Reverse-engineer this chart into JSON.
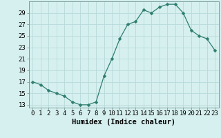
{
  "x": [
    0,
    1,
    2,
    3,
    4,
    5,
    6,
    7,
    8,
    9,
    10,
    11,
    12,
    13,
    14,
    15,
    16,
    17,
    18,
    19,
    20,
    21,
    22,
    23
  ],
  "y": [
    17,
    16.5,
    15.5,
    15,
    14.5,
    13.5,
    13,
    13,
    13.5,
    18,
    21,
    24.5,
    27,
    27.5,
    29.5,
    29,
    30,
    30.5,
    30.5,
    29,
    26,
    25,
    24.5,
    22.5
  ],
  "line_color": "#2e7d6e",
  "marker": "D",
  "marker_size": 2.5,
  "bg_color": "#d6f0ef",
  "grid_color": "#b8dada",
  "xlabel": "Humidex (Indice chaleur)",
  "xlim": [
    -0.5,
    23.5
  ],
  "ylim": [
    12.5,
    31.0
  ],
  "yticks": [
    13,
    15,
    17,
    19,
    21,
    23,
    25,
    27,
    29
  ],
  "xticks": [
    0,
    1,
    2,
    3,
    4,
    5,
    6,
    7,
    8,
    9,
    10,
    11,
    12,
    13,
    14,
    15,
    16,
    17,
    18,
    19,
    20,
    21,
    22,
    23
  ],
  "tick_fontsize": 6.5,
  "xlabel_fontsize": 7.5,
  "spine_color": "#7a9a9a"
}
